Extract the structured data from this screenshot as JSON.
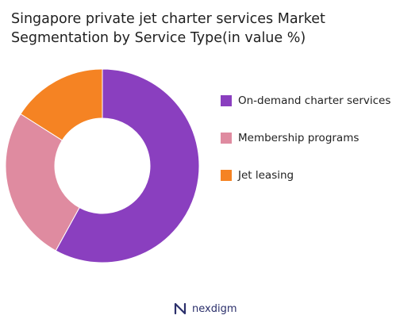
{
  "chart_data": {
    "type": "pie",
    "title_lines": [
      "Singapore private jet charter services Market",
      "Segmentation by Service Type(in value %)"
    ],
    "categories": [
      "On-demand charter services",
      "Membership programs",
      "Jet leasing"
    ],
    "values": [
      58,
      26,
      16
    ],
    "colors": [
      "#8a3fbf",
      "#df8ba0",
      "#f58323"
    ],
    "donut": true,
    "legend_position": "right"
  },
  "brand": {
    "name": "nexdigm",
    "logo_color": "#2b2f6b"
  }
}
